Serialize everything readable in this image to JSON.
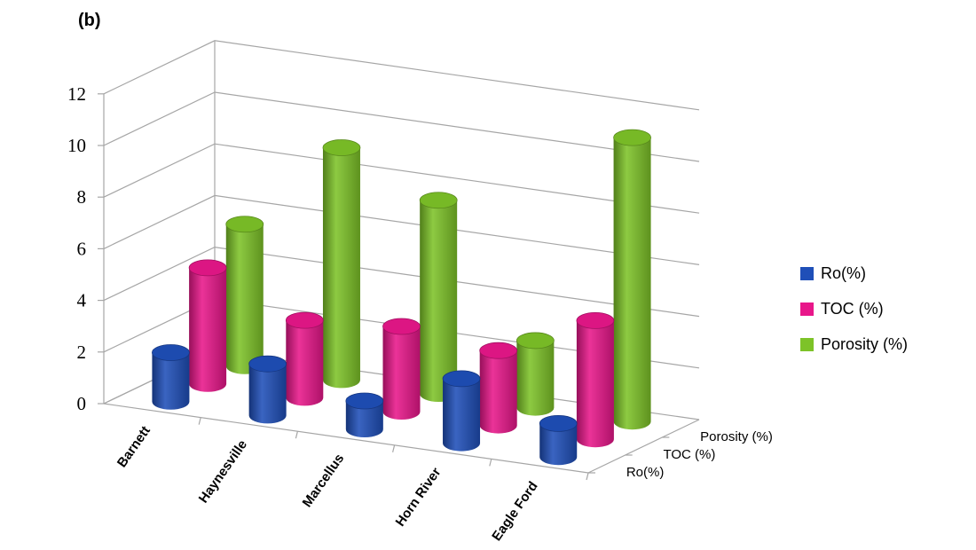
{
  "panel_label": "(b)",
  "chart_data": {
    "type": "bar",
    "style": "3d-cylinder",
    "categories": [
      "Barnett",
      "Haynesville",
      "Marcellus",
      "Horn River",
      "Eagle Ford"
    ],
    "series": [
      {
        "name": "Ro(%)",
        "color": "#1f4fb8",
        "values": [
          1.9,
          2.0,
          1.1,
          2.5,
          1.3
        ]
      },
      {
        "name": "TOC (%)",
        "color": "#e8178a",
        "values": [
          4.5,
          3.0,
          3.3,
          2.9,
          4.6
        ]
      },
      {
        "name": "Porosity (%)",
        "color": "#7dc328",
        "values": [
          5.5,
          9.0,
          7.5,
          2.6,
          11.0
        ]
      }
    ],
    "depth_labels": [
      "Ro(%)",
      "TOC (%)",
      "Porosity (%)"
    ],
    "y_ticks": [
      0,
      2,
      4,
      6,
      8,
      10,
      12
    ],
    "ylim": [
      0,
      12
    ],
    "grid": true,
    "legend": "right"
  }
}
